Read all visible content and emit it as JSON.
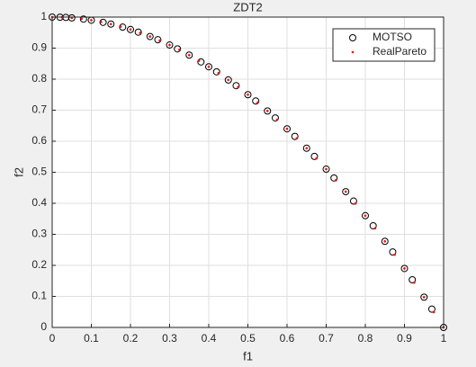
{
  "chart_data": {
    "type": "scatter",
    "title": "ZDT2",
    "x_label": "f1",
    "y_label": "f2",
    "xlim": [
      0,
      1
    ],
    "ylim": [
      0,
      1
    ],
    "xticks": [
      0,
      0.1,
      0.2,
      0.3,
      0.4,
      0.5,
      0.6,
      0.7,
      0.8,
      0.9,
      1
    ],
    "yticks": [
      0,
      0.1,
      0.2,
      0.3,
      0.4,
      0.5,
      0.6,
      0.7,
      0.8,
      0.9,
      1
    ],
    "grid": true,
    "legend": "top-right",
    "series": [
      {
        "name": "MOTSO",
        "color": "#000000",
        "marker": "circle",
        "x": [
          0,
          0.02,
          0.035,
          0.05,
          0.08,
          0.1,
          0.13,
          0.15,
          0.18,
          0.2,
          0.22,
          0.25,
          0.27,
          0.3,
          0.32,
          0.35,
          0.38,
          0.4,
          0.42,
          0.45,
          0.47,
          0.5,
          0.52,
          0.55,
          0.57,
          0.6,
          0.62,
          0.65,
          0.67,
          0.7,
          0.72,
          0.75,
          0.77,
          0.8,
          0.82,
          0.85,
          0.87,
          0.9,
          0.92,
          0.95,
          0.97,
          1.0
        ],
        "values": [
          1,
          0.9996,
          0.9988,
          0.9975,
          0.9936,
          0.99,
          0.9831,
          0.9775,
          0.9676,
          0.96,
          0.9516,
          0.9375,
          0.9271,
          0.91,
          0.8976,
          0.8775,
          0.8556,
          0.84,
          0.8236,
          0.7975,
          0.7791,
          0.75,
          0.7296,
          0.6975,
          0.6751,
          0.64,
          0.6156,
          0.5775,
          0.5511,
          0.51,
          0.4816,
          0.4375,
          0.4071,
          0.36,
          0.3276,
          0.2775,
          0.2431,
          0.19,
          0.1536,
          0.0975,
          0.0591,
          0
        ]
      },
      {
        "name": "RealPareto",
        "color": "#ff0000",
        "marker": "dot",
        "x": [
          0,
          0.025,
          0.05,
          0.075,
          0.1,
          0.125,
          0.15,
          0.175,
          0.2,
          0.225,
          0.25,
          0.275,
          0.3,
          0.325,
          0.35,
          0.375,
          0.4,
          0.425,
          0.45,
          0.475,
          0.5,
          0.525,
          0.55,
          0.575,
          0.6,
          0.625,
          0.65,
          0.675,
          0.7,
          0.725,
          0.75,
          0.775,
          0.8,
          0.825,
          0.85,
          0.875,
          0.9,
          0.925,
          0.95,
          0.975,
          1
        ],
        "values": [
          1,
          0.9994,
          0.9975,
          0.9944,
          0.99,
          0.9844,
          0.9775,
          0.9694,
          0.96,
          0.9494,
          0.9375,
          0.9244,
          0.91,
          0.8944,
          0.8775,
          0.8594,
          0.84,
          0.8194,
          0.7975,
          0.7744,
          0.75,
          0.7244,
          0.6975,
          0.6694,
          0.64,
          0.6094,
          0.5775,
          0.5444,
          0.51,
          0.4744,
          0.4375,
          0.3994,
          0.36,
          0.3194,
          0.2775,
          0.2344,
          0.19,
          0.1444,
          0.0975,
          0.0494,
          0
        ]
      }
    ]
  }
}
